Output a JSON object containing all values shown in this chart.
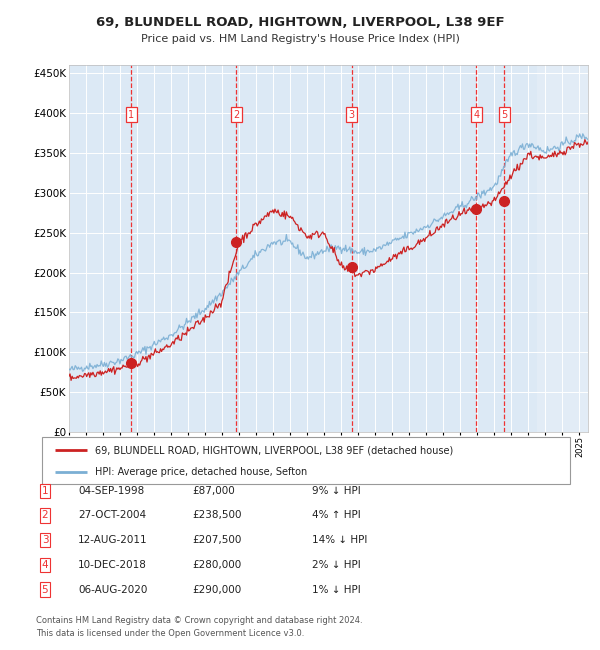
{
  "title1": "69, BLUNDELL ROAD, HIGHTOWN, LIVERPOOL, L38 9EF",
  "title2": "Price paid vs. HM Land Registry's House Price Index (HPI)",
  "plot_bg_color": "#dce9f5",
  "ylim": [
    0,
    460000
  ],
  "yticks": [
    0,
    50000,
    100000,
    150000,
    200000,
    250000,
    300000,
    350000,
    400000,
    450000
  ],
  "ytick_labels": [
    "£0",
    "£50K",
    "£100K",
    "£150K",
    "£200K",
    "£250K",
    "£300K",
    "£350K",
    "£400K",
    "£450K"
  ],
  "sale_dates_num": [
    1998.67,
    2004.82,
    2011.61,
    2018.94,
    2020.59
  ],
  "sale_prices": [
    87000,
    238500,
    207500,
    280000,
    290000
  ],
  "sale_labels": [
    "1",
    "2",
    "3",
    "4",
    "5"
  ],
  "vline_color": "#ee3333",
  "hpi_line_color": "#7bafd4",
  "price_line_color": "#cc2222",
  "dot_color": "#cc2222",
  "legend_label_red": "69, BLUNDELL ROAD, HIGHTOWN, LIVERPOOL, L38 9EF (detached house)",
  "legend_label_blue": "HPI: Average price, detached house, Sefton",
  "table_rows": [
    [
      "1",
      "04-SEP-1998",
      "£87,000",
      "9% ↓ HPI"
    ],
    [
      "2",
      "27-OCT-2004",
      "£238,500",
      "4% ↑ HPI"
    ],
    [
      "3",
      "12-AUG-2011",
      "£207,500",
      "14% ↓ HPI"
    ],
    [
      "4",
      "10-DEC-2018",
      "£280,000",
      "2% ↓ HPI"
    ],
    [
      "5",
      "06-AUG-2020",
      "£290,000",
      "1% ↓ HPI"
    ]
  ],
  "footnote1": "Contains HM Land Registry data © Crown copyright and database right 2024.",
  "footnote2": "This data is licensed under the Open Government Licence v3.0.",
  "xmin": 1995.0,
  "xmax": 2025.5,
  "hpi_anchors_x": [
    1995,
    1996,
    1997,
    1998,
    1999,
    2000,
    2001,
    2002,
    2003,
    2004,
    2005,
    2006,
    2007,
    2008,
    2009,
    2010,
    2011,
    2012,
    2013,
    2014,
    2015,
    2016,
    2017,
    2018,
    2019,
    2020,
    2021,
    2022,
    2023,
    2024,
    2025
  ],
  "hpi_anchors_y": [
    78000,
    82000,
    85000,
    90000,
    98000,
    110000,
    122000,
    138000,
    155000,
    175000,
    200000,
    222000,
    238000,
    238000,
    218000,
    228000,
    232000,
    225000,
    228000,
    238000,
    248000,
    258000,
    270000,
    282000,
    295000,
    308000,
    348000,
    362000,
    352000,
    360000,
    370000
  ],
  "price_anchors_x": [
    1995,
    1996,
    1997,
    1998,
    1999,
    2000,
    2001,
    2002,
    2003,
    2004,
    2005,
    2006,
    2007,
    2008,
    2009,
    2010,
    2011,
    2012,
    2013,
    2014,
    2015,
    2016,
    2017,
    2018,
    2019,
    2020,
    2021,
    2022,
    2023,
    2024,
    2025
  ],
  "price_anchors_y": [
    68000,
    72000,
    76000,
    80000,
    87000,
    98000,
    110000,
    126000,
    143000,
    165000,
    238500,
    260000,
    278000,
    270000,
    245000,
    250000,
    207000,
    197000,
    204000,
    218000,
    230000,
    243000,
    260000,
    273000,
    280000,
    289000,
    322000,
    348000,
    342000,
    352000,
    362000
  ],
  "noise_seed": 42,
  "n_points": 500
}
